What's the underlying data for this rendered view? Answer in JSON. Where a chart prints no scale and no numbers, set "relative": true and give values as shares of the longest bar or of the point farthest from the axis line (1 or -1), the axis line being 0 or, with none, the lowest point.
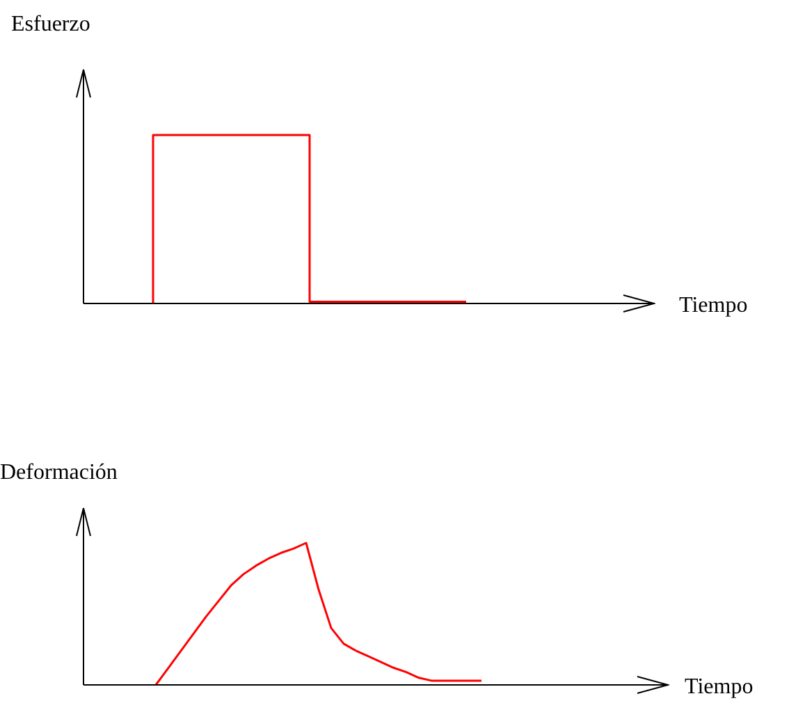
{
  "chart_data": [
    {
      "type": "step",
      "relative": true,
      "ylabel": "Esfuerzo",
      "xlabel": "Tiempo",
      "tick_labels": false,
      "marker": "none",
      "categories": [
        null,
        null,
        null,
        null,
        null,
        null,
        null,
        null,
        null,
        null,
        null,
        null,
        null,
        null,
        null,
        null,
        null,
        null,
        null,
        null,
        null,
        null,
        null,
        null,
        null,
        null,
        null,
        null,
        null,
        null,
        null,
        null,
        null
      ],
      "series": [
        {
          "color": "#ff0000",
          "values": [
            null,
            null,
            null,
            null,
            0,
            1,
            1,
            1,
            1,
            1,
            1,
            1,
            1,
            1,
            0.01,
            0.01,
            0.01,
            0.01,
            0.01,
            0.01,
            0.01,
            0.01,
            0.01,
            null,
            null,
            null,
            null,
            null,
            null,
            null,
            null,
            null,
            null
          ]
        }
      ]
    },
    {
      "type": "line",
      "relative": true,
      "ylabel": "Deformación",
      "xlabel": "Tiempo",
      "tick_labels": false,
      "marker": "none",
      "categories": [
        null,
        null,
        null,
        null,
        null,
        null,
        null,
        null,
        null,
        null,
        null,
        null,
        null,
        null,
        null,
        null,
        null,
        null,
        null,
        null,
        null,
        null,
        null,
        null,
        null,
        null,
        null,
        null,
        null,
        null,
        null,
        null,
        null,
        null,
        null,
        null,
        null,
        null,
        null,
        null,
        null,
        null,
        null,
        null,
        null,
        null,
        null,
        null
      ],
      "series": [
        {
          "color": "#ff0000",
          "values": [
            null,
            null,
            null,
            null,
            null,
            null,
            0,
            0.12,
            0.24,
            0.36,
            0.48,
            0.59,
            0.7,
            0.78,
            0.84,
            0.89,
            0.93,
            0.96,
            1,
            0.67,
            0.4,
            0.29,
            0.24,
            0.2,
            0.16,
            0.12,
            0.09,
            0.05,
            0.03,
            0.03,
            0.03,
            0.03,
            0.03,
            null,
            null,
            null,
            null,
            null,
            null,
            null,
            null,
            null,
            null,
            null,
            null,
            null,
            null,
            null
          ]
        }
      ]
    }
  ]
}
